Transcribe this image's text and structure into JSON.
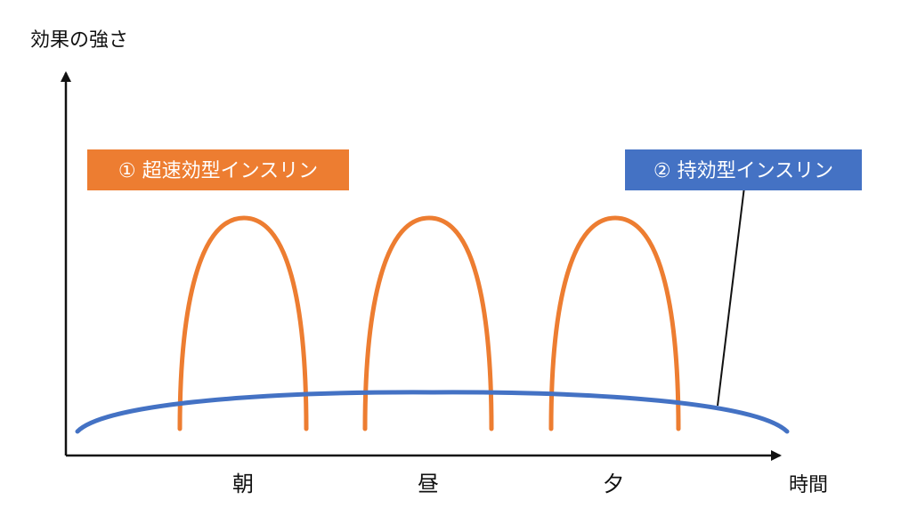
{
  "y_axis_label": "効果の強さ",
  "x_axis_label": "時間",
  "time_labels": [
    "朝",
    "昼",
    "夕"
  ],
  "rapid_insulin": {
    "label": "① 超速効型インスリン",
    "color": "#ED7D31"
  },
  "long_insulin": {
    "label": "② 持効型インスリン",
    "color": "#4472C4"
  }
}
